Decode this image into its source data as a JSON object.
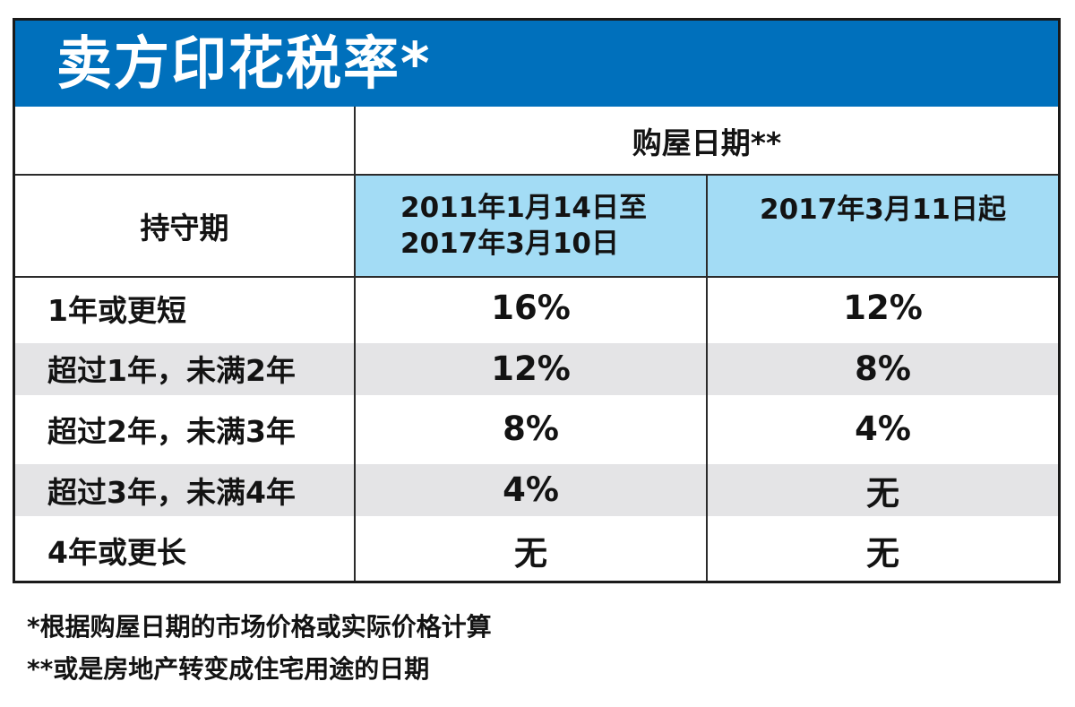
{
  "chart_data": {
    "type": "table",
    "title": "卖方印花税率*",
    "column_group_header": "购屋日期**",
    "row_header": "持守期",
    "period_columns": [
      {
        "line1": "2011年1月14日至",
        "line2": "2017年3月10日"
      },
      {
        "line1": "2017年3月11日起",
        "line2": ""
      }
    ],
    "columns": [
      "持守期",
      "2011年1月14日至2017年3月10日",
      "2017年3月11日起"
    ],
    "rows": [
      [
        "1年或更短",
        "16%",
        "12%"
      ],
      [
        "超过1年，未满2年",
        "12%",
        "8%"
      ],
      [
        "超过2年，未满3年",
        "8%",
        "4%"
      ],
      [
        "超过3年，未满4年",
        "4%",
        "无"
      ],
      [
        "4年或更长",
        "无",
        "无"
      ]
    ],
    "footnotes": [
      "*根据购屋日期的市场价格或实际价格计算",
      "**或是房地产转变成住宅用途的日期"
    ]
  },
  "colors": {
    "header_blue": "#0070BC",
    "light_blue": "#A3DCF5",
    "alt_row_gray": "#E4E4E6",
    "border_black": "#1A1A1A",
    "text_black": "#131313"
  }
}
